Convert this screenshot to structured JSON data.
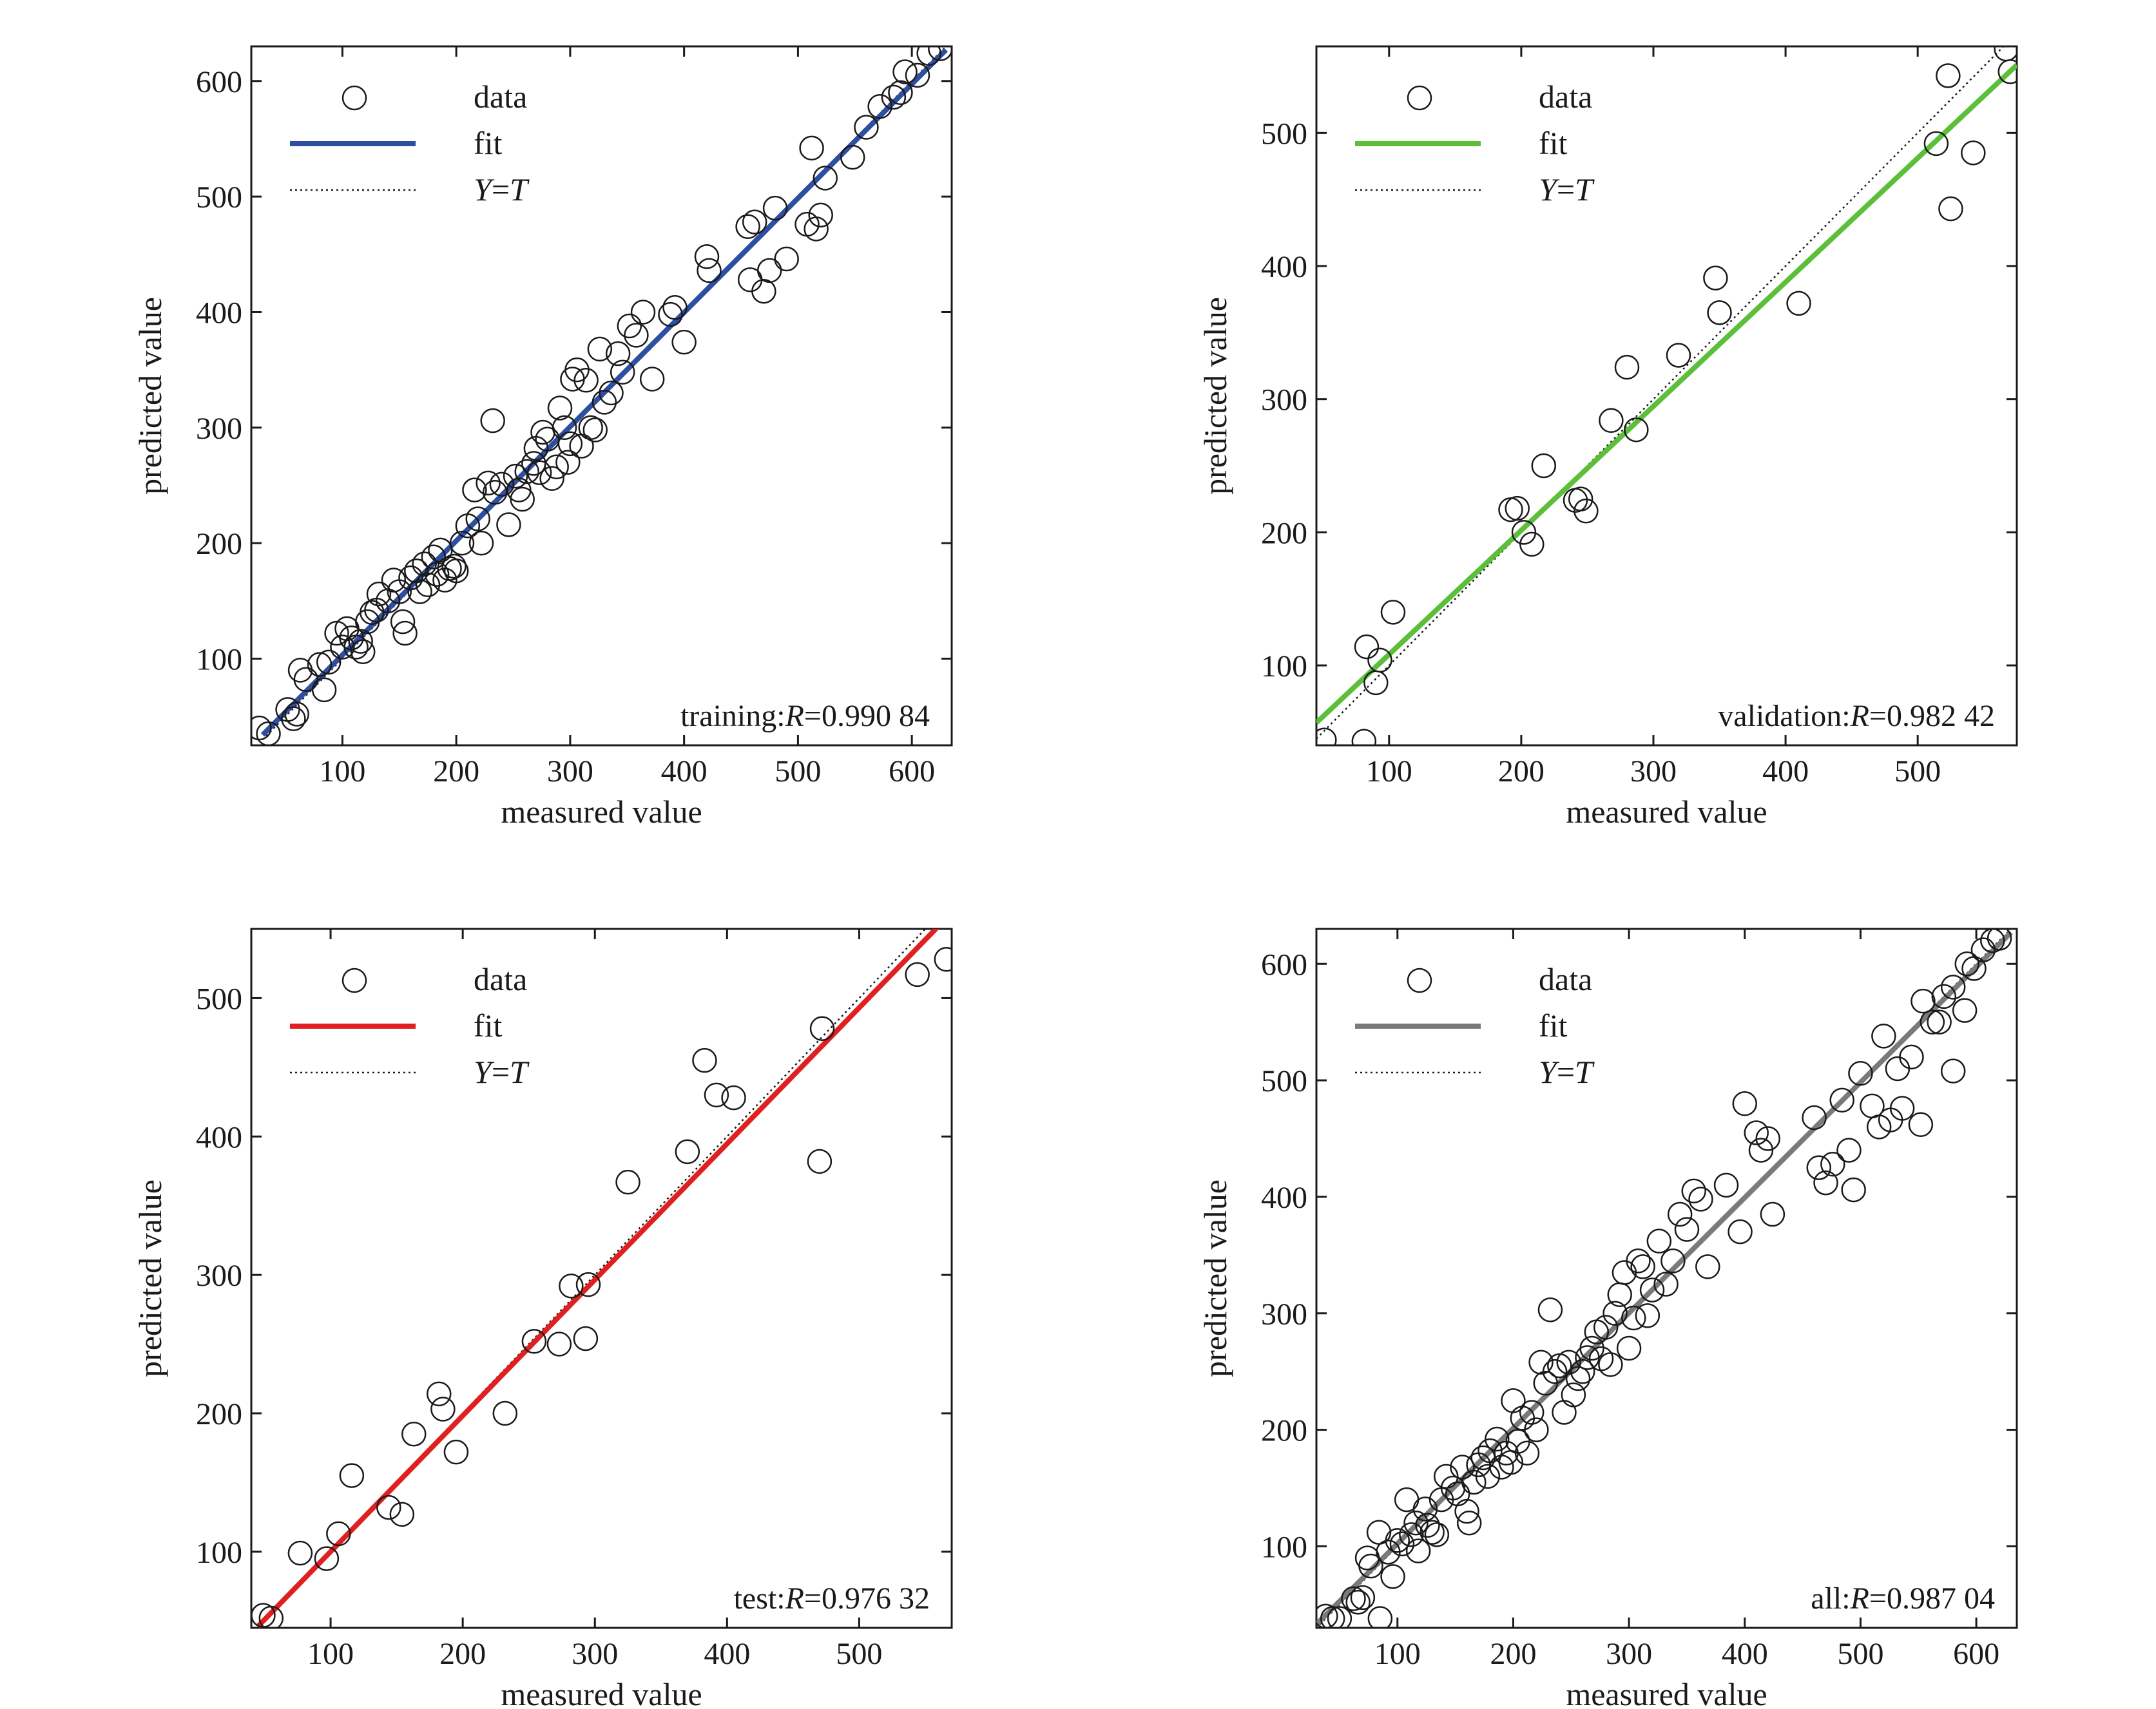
{
  "figure": {
    "panel_count": 4
  },
  "chart_data": [
    {
      "type": "scatter",
      "panel": "training",
      "xlabel": "measured value",
      "ylabel": "predicted value",
      "xlim": [
        20,
        635
      ],
      "ylim": [
        25,
        630
      ],
      "xticks": [
        100,
        200,
        300,
        400,
        500,
        600
      ],
      "yticks": [
        100,
        200,
        300,
        400,
        500,
        600
      ],
      "fit_color": "#2e4ea2",
      "legend": {
        "data": "data",
        "fit": "fit",
        "yt_y": "Y",
        "yt_eq": "=",
        "yt_t": "T",
        "position": "top-left"
      },
      "annotation": {
        "prefix": "training:",
        "r_symbol": "R",
        "r_value": "=0.990 84",
        "position": "bottom-right"
      },
      "fit_line": {
        "x": [
          30,
          630
        ],
        "y": [
          34,
          627
        ]
      },
      "identity_line": {
        "x": [
          30,
          630
        ],
        "y": [
          30,
          630
        ]
      },
      "points": [
        [
          27,
          40
        ],
        [
          35,
          35
        ],
        [
          52,
          56
        ],
        [
          57,
          48
        ],
        [
          60,
          52
        ],
        [
          63,
          90
        ],
        [
          68,
          82
        ],
        [
          80,
          95
        ],
        [
          84,
          73
        ],
        [
          88,
          97
        ],
        [
          95,
          122
        ],
        [
          100,
          110
        ],
        [
          104,
          126
        ],
        [
          108,
          118
        ],
        [
          112,
          110
        ],
        [
          116,
          115
        ],
        [
          118,
          106
        ],
        [
          122,
          132
        ],
        [
          126,
          140
        ],
        [
          130,
          142
        ],
        [
          132,
          156
        ],
        [
          140,
          150
        ],
        [
          145,
          168
        ],
        [
          150,
          158
        ],
        [
          153,
          132
        ],
        [
          155,
          122
        ],
        [
          160,
          170
        ],
        [
          165,
          176
        ],
        [
          168,
          158
        ],
        [
          172,
          182
        ],
        [
          175,
          164
        ],
        [
          180,
          188
        ],
        [
          183,
          173
        ],
        [
          186,
          194
        ],
        [
          190,
          168
        ],
        [
          194,
          178
        ],
        [
          198,
          180
        ],
        [
          200,
          176
        ],
        [
          205,
          200
        ],
        [
          210,
          215
        ],
        [
          216,
          246
        ],
        [
          219,
          221
        ],
        [
          222,
          200
        ],
        [
          228,
          252
        ],
        [
          232,
          306
        ],
        [
          234,
          244
        ],
        [
          240,
          251
        ],
        [
          246,
          216
        ],
        [
          252,
          258
        ],
        [
          255,
          246
        ],
        [
          258,
          238
        ],
        [
          262,
          262
        ],
        [
          268,
          269
        ],
        [
          270,
          282
        ],
        [
          273,
          261
        ],
        [
          276,
          296
        ],
        [
          280,
          290
        ],
        [
          284,
          256
        ],
        [
          288,
          266
        ],
        [
          291,
          317
        ],
        [
          295,
          300
        ],
        [
          298,
          270
        ],
        [
          300,
          286
        ],
        [
          302,
          342
        ],
        [
          306,
          350
        ],
        [
          310,
          284
        ],
        [
          314,
          341
        ],
        [
          318,
          300
        ],
        [
          322,
          298
        ],
        [
          326,
          368
        ],
        [
          330,
          322
        ],
        [
          336,
          330
        ],
        [
          342,
          364
        ],
        [
          346,
          348
        ],
        [
          352,
          388
        ],
        [
          358,
          380
        ],
        [
          364,
          400
        ],
        [
          372,
          342
        ],
        [
          388,
          398
        ],
        [
          392,
          404
        ],
        [
          400,
          374
        ],
        [
          420,
          448
        ],
        [
          422,
          436
        ],
        [
          456,
          474
        ],
        [
          458,
          428
        ],
        [
          462,
          478
        ],
        [
          470,
          418
        ],
        [
          475,
          436
        ],
        [
          480,
          490
        ],
        [
          490,
          446
        ],
        [
          508,
          476
        ],
        [
          512,
          542
        ],
        [
          516,
          472
        ],
        [
          520,
          484
        ],
        [
          524,
          516
        ],
        [
          548,
          534
        ],
        [
          560,
          560
        ],
        [
          572,
          578
        ],
        [
          590,
          590
        ],
        [
          594,
          608
        ],
        [
          605,
          605
        ],
        [
          615,
          624
        ],
        [
          625,
          628
        ],
        [
          584,
          586
        ]
      ]
    },
    {
      "type": "scatter",
      "panel": "validation",
      "xlabel": "measured value",
      "ylabel": "predicted value",
      "xlim": [
        45,
        575
      ],
      "ylim": [
        40,
        565
      ],
      "xticks": [
        100,
        200,
        300,
        400,
        500
      ],
      "yticks": [
        100,
        200,
        300,
        400,
        500
      ],
      "fit_color": "#5cbf3a",
      "legend": {
        "data": "data",
        "fit": "fit",
        "yt_y": "Y",
        "yt_eq": "=",
        "yt_t": "T",
        "position": "top-left"
      },
      "annotation": {
        "prefix": "validation:",
        "r_symbol": "R",
        "r_value": "=0.982 42",
        "position": "bottom-right"
      },
      "fit_line": {
        "x": [
          45,
          575
        ],
        "y": [
          57,
          551
        ]
      },
      "identity_line": {
        "x": [
          45,
          575
        ],
        "y": [
          45,
          575
        ]
      },
      "points": [
        [
          51,
          44
        ],
        [
          81,
          43
        ],
        [
          83,
          114
        ],
        [
          90,
          87
        ],
        [
          93,
          104
        ],
        [
          103,
          140
        ],
        [
          192,
          217
        ],
        [
          197,
          218
        ],
        [
          202,
          200
        ],
        [
          208,
          191
        ],
        [
          217,
          250
        ],
        [
          241,
          224
        ],
        [
          245,
          225
        ],
        [
          249,
          216
        ],
        [
          268,
          284
        ],
        [
          280,
          324
        ],
        [
          287,
          277
        ],
        [
          319,
          333
        ],
        [
          347,
          391
        ],
        [
          350,
          365
        ],
        [
          410,
          372
        ],
        [
          514,
          492
        ],
        [
          523,
          543
        ],
        [
          525,
          443
        ],
        [
          542,
          485
        ],
        [
          567,
          563
        ],
        [
          570,
          546
        ]
      ]
    },
    {
      "type": "scatter",
      "panel": "test",
      "xlabel": "measured value",
      "ylabel": "predicted value",
      "xlim": [
        40,
        570
      ],
      "ylim": [
        45,
        550
      ],
      "xticks": [
        100,
        200,
        300,
        400,
        500
      ],
      "yticks": [
        100,
        200,
        300,
        400,
        500
      ],
      "fit_color": "#e02020",
      "legend": {
        "data": "data",
        "fit": "fit",
        "yt_y": "Y",
        "yt_eq": "=",
        "yt_t": "T",
        "position": "top-left"
      },
      "annotation": {
        "prefix": "test:",
        "r_symbol": "R",
        "r_value": "=0.976 32",
        "position": "bottom-right"
      },
      "fit_line": {
        "x": [
          45,
          560
        ],
        "y": [
          46,
          552
        ]
      },
      "identity_line": {
        "x": [
          45,
          570
        ],
        "y": [
          45,
          570
        ]
      },
      "points": [
        [
          49,
          54
        ],
        [
          55,
          52
        ],
        [
          77,
          99
        ],
        [
          97,
          95
        ],
        [
          106,
          113
        ],
        [
          116,
          155
        ],
        [
          144,
          132
        ],
        [
          154,
          127
        ],
        [
          163,
          185
        ],
        [
          182,
          214
        ],
        [
          185,
          203
        ],
        [
          195,
          172
        ],
        [
          232,
          200
        ],
        [
          254,
          252
        ],
        [
          273,
          250
        ],
        [
          282,
          292
        ],
        [
          293,
          254
        ],
        [
          295,
          293
        ],
        [
          325,
          367
        ],
        [
          370,
          389
        ],
        [
          383,
          455
        ],
        [
          392,
          430
        ],
        [
          405,
          428
        ],
        [
          470,
          382
        ],
        [
          472,
          478
        ],
        [
          544,
          517
        ],
        [
          566,
          528
        ]
      ]
    },
    {
      "type": "scatter",
      "panel": "all",
      "xlabel": "measured value",
      "ylabel": "predicted value",
      "xlim": [
        30,
        635
      ],
      "ylim": [
        30,
        630
      ],
      "xticks": [
        100,
        200,
        300,
        400,
        500,
        600
      ],
      "yticks": [
        100,
        200,
        300,
        400,
        500,
        600
      ],
      "fit_color": "#7a7a7a",
      "legend": {
        "data": "data",
        "fit": "fit",
        "yt_y": "Y",
        "yt_eq": "=",
        "yt_t": "T",
        "position": "top-left"
      },
      "annotation": {
        "prefix": "all:",
        "r_symbol": "R",
        "r_value": "=0.987 04",
        "position": "bottom-right"
      },
      "fit_line": {
        "x": [
          30,
          630
        ],
        "y": [
          33,
          627
        ]
      },
      "identity_line": {
        "x": [
          30,
          630
        ],
        "y": [
          30,
          630
        ]
      },
      "points": [
        [
          38,
          40
        ],
        [
          44,
          38
        ],
        [
          50,
          38
        ],
        [
          62,
          55
        ],
        [
          66,
          52
        ],
        [
          70,
          56
        ],
        [
          74,
          90
        ],
        [
          77,
          83
        ],
        [
          84,
          112
        ],
        [
          85,
          38
        ],
        [
          92,
          95
        ],
        [
          96,
          74
        ],
        [
          100,
          105
        ],
        [
          104,
          102
        ],
        [
          108,
          140
        ],
        [
          112,
          110
        ],
        [
          116,
          120
        ],
        [
          118,
          96
        ],
        [
          124,
          132
        ],
        [
          126,
          118
        ],
        [
          130,
          112
        ],
        [
          134,
          110
        ],
        [
          138,
          140
        ],
        [
          142,
          160
        ],
        [
          148,
          150
        ],
        [
          152,
          145
        ],
        [
          156,
          168
        ],
        [
          160,
          130
        ],
        [
          162,
          120
        ],
        [
          166,
          155
        ],
        [
          170,
          170
        ],
        [
          174,
          176
        ],
        [
          178,
          160
        ],
        [
          180,
          182
        ],
        [
          186,
          192
        ],
        [
          190,
          168
        ],
        [
          194,
          180
        ],
        [
          198,
          172
        ],
        [
          200,
          225
        ],
        [
          204,
          190
        ],
        [
          208,
          210
        ],
        [
          212,
          180
        ],
        [
          216,
          215
        ],
        [
          220,
          200
        ],
        [
          224,
          258
        ],
        [
          228,
          240
        ],
        [
          232,
          303
        ],
        [
          236,
          250
        ],
        [
          240,
          255
        ],
        [
          244,
          215
        ],
        [
          248,
          258
        ],
        [
          252,
          230
        ],
        [
          256,
          244
        ],
        [
          260,
          250
        ],
        [
          264,
          262
        ],
        [
          268,
          270
        ],
        [
          272,
          284
        ],
        [
          276,
          261
        ],
        [
          280,
          288
        ],
        [
          284,
          256
        ],
        [
          288,
          300
        ],
        [
          292,
          316
        ],
        [
          296,
          335
        ],
        [
          300,
          270
        ],
        [
          304,
          296
        ],
        [
          308,
          345
        ],
        [
          312,
          340
        ],
        [
          316,
          298
        ],
        [
          320,
          320
        ],
        [
          326,
          362
        ],
        [
          332,
          325
        ],
        [
          338,
          345
        ],
        [
          344,
          385
        ],
        [
          350,
          372
        ],
        [
          356,
          405
        ],
        [
          362,
          398
        ],
        [
          368,
          340
        ],
        [
          384,
          410
        ],
        [
          396,
          370
        ],
        [
          400,
          480
        ],
        [
          410,
          455
        ],
        [
          414,
          440
        ],
        [
          420,
          450
        ],
        [
          424,
          385
        ],
        [
          460,
          468
        ],
        [
          464,
          425
        ],
        [
          470,
          412
        ],
        [
          476,
          428
        ],
        [
          484,
          483
        ],
        [
          490,
          440
        ],
        [
          494,
          406
        ],
        [
          500,
          506
        ],
        [
          510,
          478
        ],
        [
          516,
          460
        ],
        [
          520,
          538
        ],
        [
          526,
          466
        ],
        [
          532,
          510
        ],
        [
          536,
          476
        ],
        [
          544,
          520
        ],
        [
          552,
          462
        ],
        [
          554,
          568
        ],
        [
          562,
          550
        ],
        [
          568,
          550
        ],
        [
          572,
          572
        ],
        [
          580,
          580
        ],
        [
          590,
          560
        ],
        [
          592,
          600
        ],
        [
          598,
          596
        ],
        [
          606,
          612
        ],
        [
          614,
          620
        ],
        [
          620,
          622
        ],
        [
          580,
          508
        ]
      ]
    }
  ]
}
